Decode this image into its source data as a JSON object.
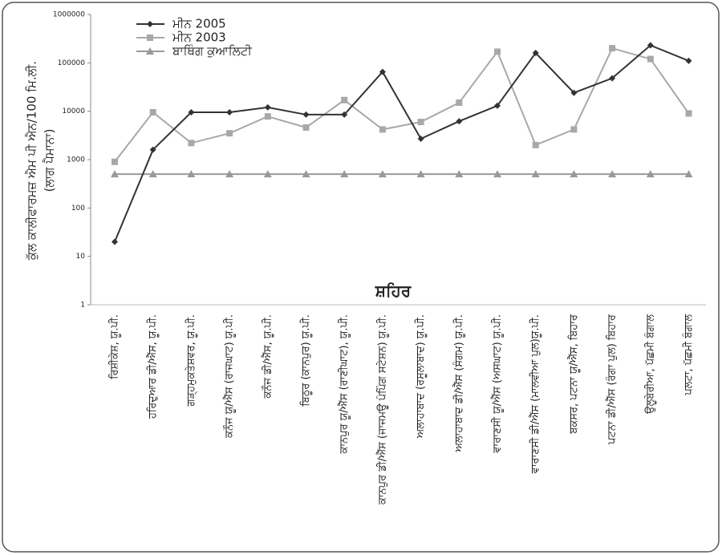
{
  "chart_data": {
    "type": "line",
    "y_label": "ਕੁੱਲ ਕਾਲੀਫਾਰਮਜ਼ ਐਮ ਪੀ ਐਨ/100 ਮਿ.ਲੀ.",
    "y_label_sub": "(ਲਾਗ ਪੈਮਾਨਾ)",
    "x_label": "ਸ਼ਹਿਰ",
    "categories": [
      "ਰਿਸ਼ੀਕੇਸ਼, ਯੂ.ਪੀ.",
      "ਹਰਿਦੁਆਰ ਡੀ/ਐੱਸ, ਯੂ.ਪੀ.",
      "ਗੜ੍ਹਮੁਕਤੇਸ਼ਵਰ, ਯੂ.ਪੀ.",
      "ਕਨੌਜ ਯੂ/ਐੱਸ (ਰਾਜਘਾਟ) ਯੂ.ਪੀ.",
      "ਕਨੌਜ ਡੀ/ਐੱਸ, ਯੂ.ਪੀ.",
      "ਬਿਠੂਰ (ਕਾਨਪੁਰ) ਯੂ.ਪੀ.",
      "ਕਾਨਪੁਰ ਯੂ/ਐੱਸ (ਰਾਣੀਘਾਟ), ਯੂ.ਪੀ.",
      "ਕਾਨਪੁਰ ਡੀ/ਐੱਸ (ਜਾਜਮਊ ਪੰਪਿੰਗ ਸਟੇਸ਼ਨ) ਯੂ.ਪੀ.",
      "ਅਲਾਹਾਬਾਦ (ਰਸੂਲਾਬਾਦ) ਯੂ.ਪੀ.",
      "ਅਲਾਹਾਬਾਦ ਡੀ/ਐੱਸ (ਸੰਗਮ) ਯੂ.ਪੀ.",
      "ਵਾਰਾਣਸੀ ਯੂ/ਐੱਸ (ਅਸਘਾਟ) ਯੂ.ਪੀ.",
      "ਵਾਰਾਣਸੀ ਡੀ/ਐੱਸ (ਮਾਲਵੀਆ ਪੁਲ)ਯੂ.ਪੀ.",
      "ਬਕਸਰ, ਪਟਨਾ ਯੂ/ਐੱਸ, ਬਿਹਾਰ",
      "ਪਟਨਾ ਡੀ/ਐੱਸ (ਰੰਗਾ ਪੁਲ) ਬਿਹਾਰ",
      "ਉਲੂਬੇਰੀਆ, ਪੱਛਮੀ ਬੰਗਾਲ",
      "ਪਲਟਾ, ਪੱਛਮੀ ਬੰਗਾਲ"
    ],
    "series": [
      {
        "name": "ਮੀਨ 2005",
        "color": "#333333",
        "marker": "diamond",
        "values": [
          20,
          1600,
          9500,
          9500,
          12000,
          8500,
          8500,
          65000,
          2700,
          6200,
          13000,
          160000,
          24000,
          48000,
          230000,
          110000
        ]
      },
      {
        "name": "ਮੀਨ 2003",
        "color": "#a8a8a8",
        "marker": "square",
        "values": [
          900,
          9500,
          2200,
          3500,
          7800,
          4600,
          17000,
          4200,
          6000,
          15000,
          170000,
          2000,
          4200,
          200000,
          120000,
          9000
        ]
      },
      {
        "name": "ਬਾਥਿੰਗ ਕੁਆਲਿਟੀ",
        "color": "#999999",
        "marker": "triangle",
        "values": [
          500,
          500,
          500,
          500,
          500,
          500,
          500,
          500,
          500,
          500,
          500,
          500,
          500,
          500,
          500,
          500
        ]
      }
    ],
    "log_scale": true,
    "ylim": [
      1,
      1000000
    ],
    "yticks": [
      1,
      10,
      100,
      1000,
      10000,
      100000,
      1000000
    ]
  }
}
